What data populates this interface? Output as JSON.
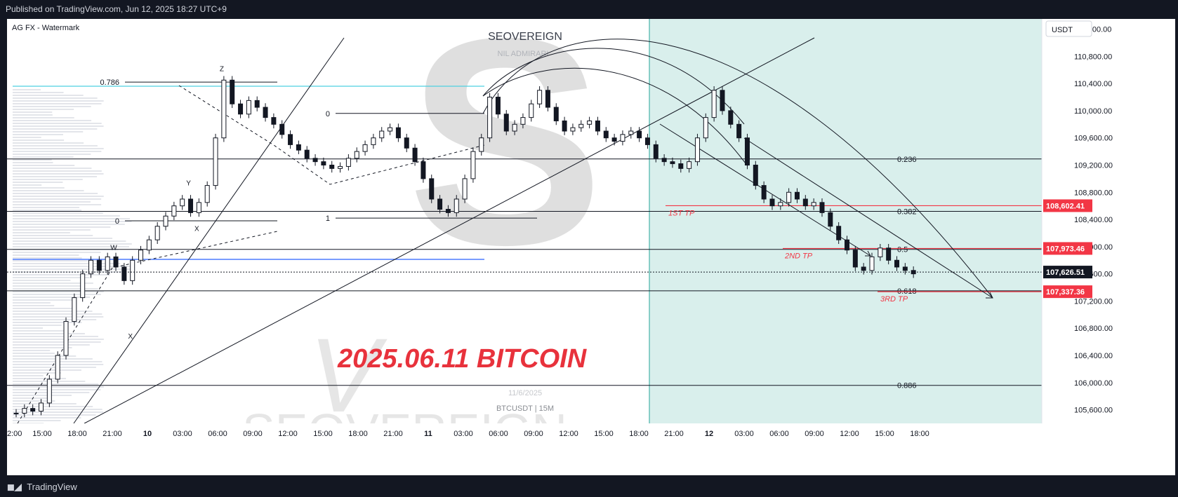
{
  "header": {
    "published": "Published on TradingView.com, Jun 12, 2025 18:27 UTC+9"
  },
  "footer": {
    "brand": "TradingView",
    "brand_icon": "tradingview-logo-icon"
  },
  "chart": {
    "indicator_label": "AG FX - Watermark",
    "currency_button": "USDT",
    "watermark": {
      "title": "SEOVEREIGN",
      "subtitle": "NIL ADMIRARI",
      "date": "11/6/2025",
      "symbol": "BTCUSDT | 15M",
      "bottom_text": "SEOVEREIGN"
    },
    "headline": "2025.06.11 BITCOIN",
    "colors": {
      "headline": "#e8323c",
      "target": "#f23645",
      "shade": "#d9efec",
      "blue_line": "#2962ff",
      "cyan_line": "#4dd0e1"
    }
  },
  "chart_data": {
    "type": "line",
    "title": "2025.06.11 BITCOIN",
    "symbol": "BTCUSDT",
    "interval": "15M",
    "xlabel": "",
    "ylabel": "USDT",
    "x_ticks": [
      "2:00",
      "15:00",
      "18:00",
      "21:00",
      "10",
      "03:00",
      "06:00",
      "09:00",
      "12:00",
      "15:00",
      "18:00",
      "21:00",
      "11",
      "03:00",
      "06:00",
      "09:00",
      "12:00",
      "15:00",
      "18:00",
      "21:00",
      "12",
      "03:00",
      "06:00",
      "09:00",
      "12:00",
      "15:00",
      "18:00"
    ],
    "y_ticks": [
      111200,
      110800,
      110400,
      110000,
      109600,
      109200,
      108800,
      108400,
      108000,
      107600,
      107200,
      106800,
      106400,
      106000,
      105600
    ],
    "ylim": [
      105400,
      111350
    ],
    "price_series": [
      105550,
      105620,
      105580,
      105700,
      106050,
      106400,
      106900,
      107250,
      107600,
      107800,
      107650,
      107850,
      107700,
      107500,
      107800,
      107950,
      108100,
      108300,
      108450,
      108600,
      108700,
      108500,
      108650,
      108900,
      109600,
      110450,
      110100,
      109950,
      110150,
      110050,
      109900,
      109800,
      109650,
      109500,
      109420,
      109300,
      109250,
      109200,
      109150,
      109180,
      109300,
      109400,
      109500,
      109600,
      109700,
      109750,
      109600,
      109450,
      109250,
      109000,
      108700,
      108550,
      108500,
      108700,
      109000,
      109400,
      109600,
      110200,
      109950,
      109700,
      109800,
      109900,
      110100,
      110300,
      110050,
      109850,
      109700,
      109750,
      109800,
      109850,
      109700,
      109600,
      109550,
      109650,
      109700,
      109600,
      109500,
      109300,
      109250,
      109220,
      109150,
      109250,
      109600,
      109900,
      110300,
      110000,
      109800,
      109600,
      109200,
      108900,
      108700,
      108600,
      108650,
      108800,
      108700,
      108600,
      108650,
      108500,
      108300,
      108100,
      107950,
      107700,
      107650,
      107850,
      107980,
      107800,
      107700,
      107650,
      107600
    ],
    "fib_levels": [
      {
        "label": "0.236",
        "value": 109290
      },
      {
        "label": "0.382",
        "value": 108520
      },
      {
        "label": "0.5",
        "value": 107960
      },
      {
        "label": "0.618",
        "value": 107350
      },
      {
        "label": "0.886",
        "value": 105960
      }
    ],
    "targets": [
      {
        "label": "1ST TP",
        "value": 108602.41,
        "price_label": "108,602.41"
      },
      {
        "label": "2ND TP",
        "value": 107973.46,
        "price_label": "107,973.46"
      },
      {
        "label": "3RD TP",
        "value": 107337.36,
        "price_label": "107,337.36"
      }
    ],
    "current_price": {
      "value": 107626.51,
      "label": "107,626.51"
    },
    "wave_labels": [
      {
        "label": "W",
        "x_index": 12,
        "value": 107950
      },
      {
        "label": "X",
        "x_index": 14,
        "value": 106650
      },
      {
        "label": "Y",
        "x_index": 21,
        "value": 108900
      },
      {
        "label": "X",
        "x_index": 22,
        "value": 108230
      },
      {
        "label": "Z",
        "x_index": 25,
        "value": 110580
      }
    ],
    "fib_box_labels": [
      {
        "label": "0.786",
        "value": 110420
      },
      {
        "label": "0",
        "value": 108380
      },
      {
        "label": "0",
        "value": 109960
      },
      {
        "label": "1",
        "value": 108420
      }
    ]
  }
}
